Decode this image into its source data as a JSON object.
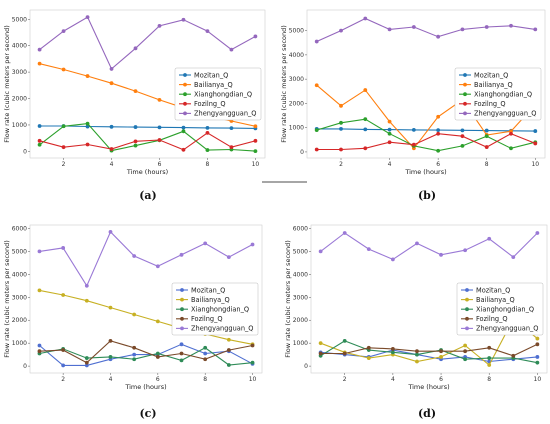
{
  "chart_data": [
    {
      "panel_label": "(a)",
      "type": "line",
      "xlabel": "Time (hours)",
      "ylabel": "Flow rate (cubic meters per second)",
      "x": [
        1,
        2,
        3,
        4,
        5,
        6,
        7,
        8,
        9,
        10
      ],
      "xticks": [
        2,
        4,
        6,
        8,
        10
      ],
      "yticks": [
        0,
        1000,
        2000,
        3000,
        4000,
        5000
      ],
      "ylim": [
        -250,
        5350
      ],
      "legend_loc": "right",
      "series": [
        {
          "name": "Mozitan_Q",
          "color": "#1f77b4",
          "values": [
            960,
            960,
            940,
            930,
            920,
            910,
            900,
            890,
            880,
            870
          ]
        },
        {
          "name": "Bailianya_Q",
          "color": "#ff7f0e",
          "values": [
            3320,
            3100,
            2850,
            2580,
            2280,
            1950,
            1650,
            1350,
            1150,
            950
          ]
        },
        {
          "name": "Xianghongdian_Q",
          "color": "#2ca02c",
          "values": [
            250,
            950,
            1050,
            30,
            220,
            420,
            760,
            50,
            70,
            10
          ]
        },
        {
          "name": "Fozilng_Q",
          "color": "#d62728",
          "values": [
            400,
            160,
            260,
            90,
            380,
            430,
            60,
            700,
            160,
            400
          ]
        },
        {
          "name": "Zhengyangguan_Q",
          "color": "#9467bd",
          "values": [
            3850,
            4550,
            5080,
            3120,
            3900,
            4750,
            4980,
            4550,
            3850,
            4350
          ]
        }
      ]
    },
    {
      "panel_label": "(b)",
      "type": "line",
      "xlabel": "Time (hours)",
      "ylabel": "Flow rate (cubic meters per second)",
      "x": [
        1,
        2,
        3,
        4,
        5,
        6,
        7,
        8,
        9,
        10
      ],
      "xticks": [
        2,
        4,
        6,
        8,
        10
      ],
      "yticks": [
        0,
        1000,
        2000,
        3000,
        4000,
        5000
      ],
      "ylim": [
        -250,
        5850
      ],
      "legend_loc": "right",
      "series": [
        {
          "name": "Mozitan_Q",
          "color": "#1f77b4",
          "values": [
            950,
            950,
            930,
            920,
            910,
            900,
            890,
            880,
            870,
            860
          ]
        },
        {
          "name": "Bailianya_Q",
          "color": "#ff7f0e",
          "values": [
            2750,
            1900,
            2550,
            1250,
            150,
            1450,
            2150,
            700,
            850,
            1950
          ]
        },
        {
          "name": "Xianghongdian_Q",
          "color": "#2ca02c",
          "values": [
            900,
            1200,
            1350,
            750,
            250,
            50,
            250,
            650,
            150,
            400
          ]
        },
        {
          "name": "Fozilng_Q",
          "color": "#d62728",
          "values": [
            100,
            100,
            150,
            400,
            300,
            750,
            650,
            200,
            750,
            350
          ]
        },
        {
          "name": "Zhengyangguan_Q",
          "color": "#9467bd",
          "values": [
            4550,
            5000,
            5500,
            5050,
            5150,
            4750,
            5050,
            5150,
            5200,
            5050
          ]
        }
      ]
    },
    {
      "panel_label": "(c)",
      "type": "line",
      "xlabel": "Time (hours)",
      "ylabel": "Flow rate (cubic meters per second)",
      "x": [
        1,
        2,
        3,
        4,
        5,
        6,
        7,
        8,
        9,
        10
      ],
      "xticks": [
        2,
        4,
        6,
        8,
        10
      ],
      "yticks": [
        0,
        1000,
        2000,
        3000,
        4000,
        5000,
        6000
      ],
      "ylim": [
        -300,
        6150
      ],
      "legend_loc": "right",
      "series": [
        {
          "name": "Mozitan_Q",
          "color": "#4f6fd1",
          "values": [
            900,
            30,
            30,
            300,
            500,
            500,
            950,
            550,
            650,
            100
          ]
        },
        {
          "name": "Bailianya_Q",
          "color": "#c7b023",
          "values": [
            3300,
            3100,
            2850,
            2550,
            2250,
            1950,
            1650,
            1400,
            1150,
            950
          ]
        },
        {
          "name": "Xianghongdian_Q",
          "color": "#2e8b57",
          "values": [
            550,
            750,
            350,
            400,
            300,
            550,
            250,
            800,
            50,
            150
          ]
        },
        {
          "name": "Fozilng_Q",
          "color": "#7a4a2a",
          "values": [
            650,
            700,
            150,
            1100,
            800,
            400,
            550,
            300,
            700,
            900
          ]
        },
        {
          "name": "Zhengyangguan_Q",
          "color": "#9a79d6",
          "values": [
            5000,
            5150,
            3500,
            5850,
            4800,
            4350,
            4850,
            5350,
            4750,
            5300
          ]
        }
      ]
    },
    {
      "panel_label": "(d)",
      "type": "line",
      "xlabel": "Time (hours)",
      "ylabel": "Flow rate (cubic meters per second)",
      "x": [
        1,
        2,
        3,
        4,
        5,
        6,
        7,
        8,
        9,
        10
      ],
      "xticks": [
        2,
        4,
        6,
        8,
        10
      ],
      "yticks": [
        0,
        1000,
        2000,
        3000,
        4000,
        5000,
        6000
      ],
      "ylim": [
        -300,
        6150
      ],
      "legend_loc": "right",
      "series": [
        {
          "name": "Mozitan_Q",
          "color": "#4f6fd1",
          "values": [
            600,
            500,
            400,
            700,
            500,
            300,
            400,
            200,
            300,
            400
          ]
        },
        {
          "name": "Bailianya_Q",
          "color": "#c7b023",
          "values": [
            1000,
            600,
            350,
            500,
            200,
            400,
            900,
            50,
            2050,
            1200
          ]
        },
        {
          "name": "Xianghongdian_Q",
          "color": "#2e8b57",
          "values": [
            450,
            1100,
            700,
            600,
            500,
            700,
            300,
            350,
            350,
            150
          ]
        },
        {
          "name": "Fozilng_Q",
          "color": "#7a4a2a",
          "values": [
            550,
            550,
            800,
            750,
            650,
            650,
            650,
            800,
            450,
            950
          ]
        },
        {
          "name": "Zhengyangguan_Q",
          "color": "#9a79d6",
          "values": [
            5000,
            5800,
            5100,
            4650,
            5350,
            4850,
            5050,
            5550,
            4750,
            5800
          ]
        }
      ]
    }
  ]
}
